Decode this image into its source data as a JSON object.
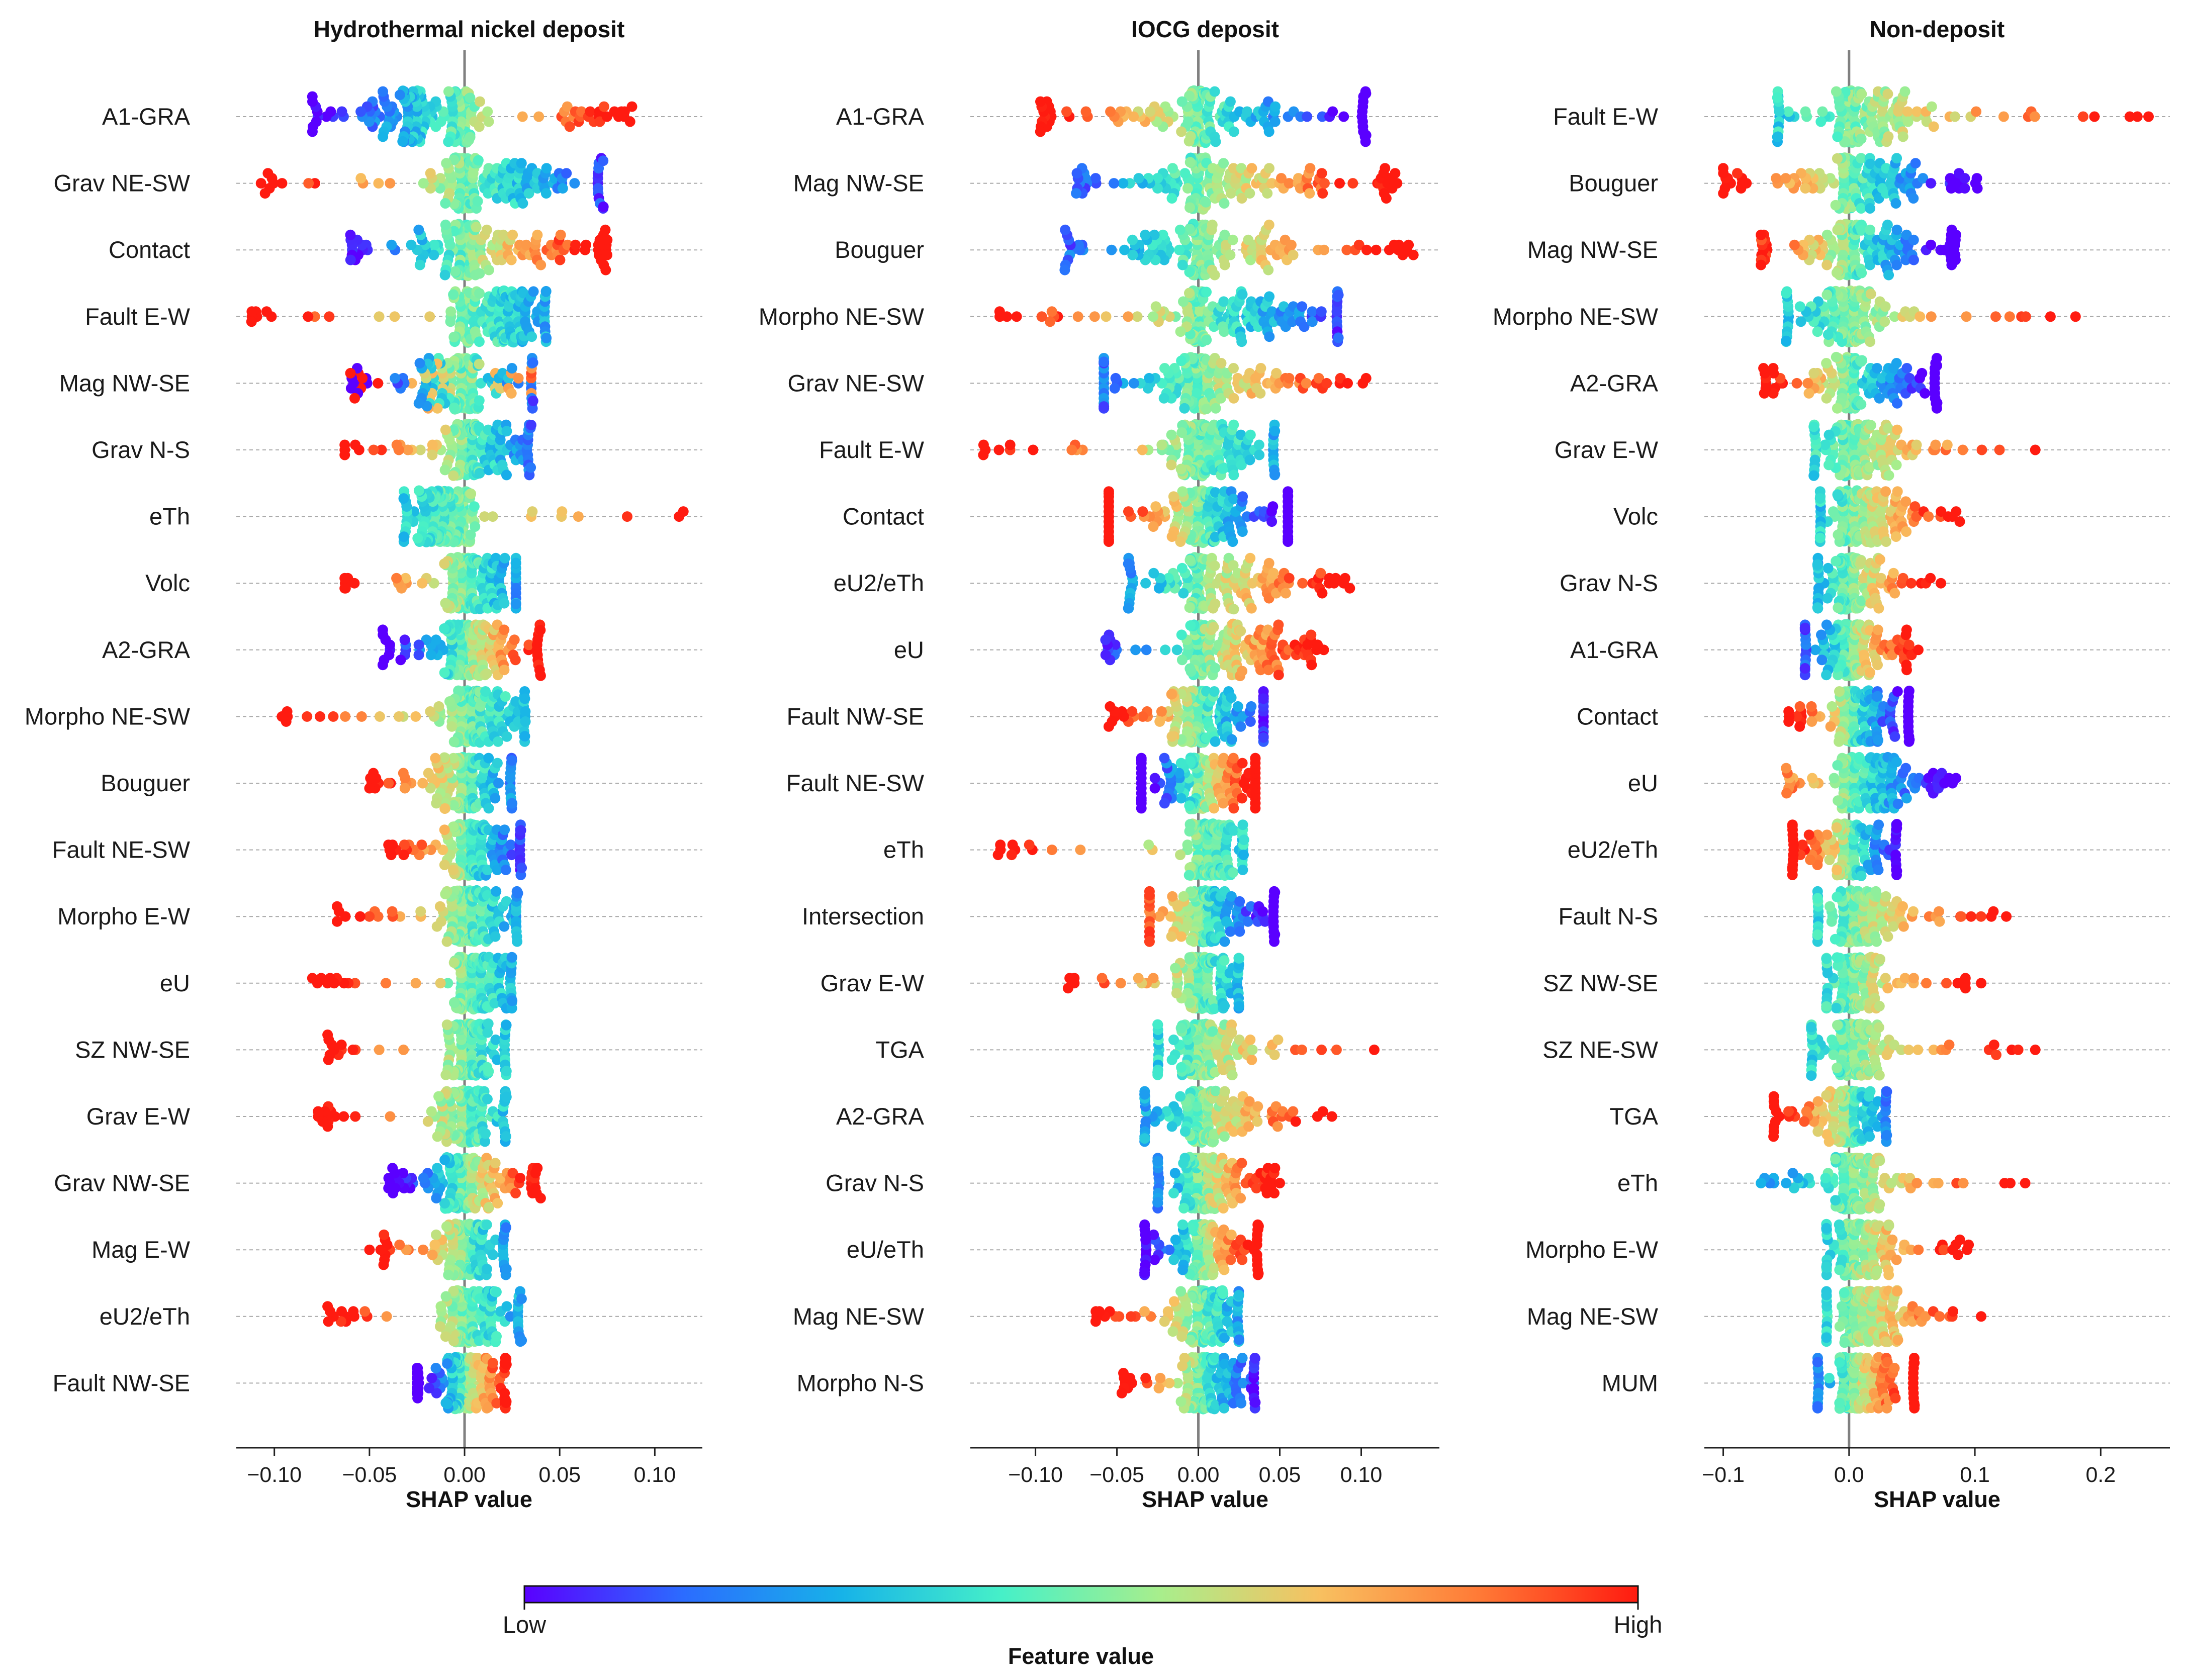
{
  "chart_data": [
    {
      "type": "scatter",
      "subtype": "shap-beeswarm",
      "title": "Hydrothermal nickel deposit",
      "xlabel": "SHAP value",
      "xlim": [
        -0.12,
        0.125
      ],
      "xticks": [
        -0.1,
        -0.05,
        0.0,
        0.05,
        0.1
      ],
      "xtick_labels": [
        "−0.10",
        "−0.05",
        "0.00",
        "0.05",
        "0.10"
      ],
      "features": [
        {
          "name": "A1-GRA",
          "min": -0.08,
          "max": 0.088,
          "low_side": "left",
          "core": [
            -0.06,
            0.0
          ],
          "extra": [
            0.05,
            0.088
          ]
        },
        {
          "name": "Grav NE-SW",
          "min": -0.107,
          "max": 0.073,
          "low_side": "right",
          "core": [
            -0.03,
            0.07
          ]
        },
        {
          "name": "Contact",
          "min": -0.06,
          "max": 0.075,
          "low_side": "left",
          "core": [
            -0.05,
            0.07
          ]
        },
        {
          "name": "Fault E-W",
          "min": -0.112,
          "max": 0.043,
          "low_side": "right",
          "core": [
            0.0,
            0.042
          ]
        },
        {
          "name": "Mag NW-SE",
          "min": -0.06,
          "max": 0.036,
          "low_side": "center",
          "core": [
            -0.05,
            0.035
          ]
        },
        {
          "name": "Grav N-S",
          "min": -0.063,
          "max": 0.035,
          "low_side": "right",
          "core": [
            -0.02,
            0.033
          ]
        },
        {
          "name": "eTh",
          "min": -0.032,
          "max": 0.115,
          "low_side": "left",
          "core": [
            -0.03,
            0.0
          ]
        },
        {
          "name": "Volc",
          "min": -0.063,
          "max": 0.027,
          "low_side": "right",
          "core": [
            -0.02,
            0.027
          ]
        },
        {
          "name": "A2-GRA",
          "min": -0.043,
          "max": 0.04,
          "low_side": "left",
          "core": [
            -0.03,
            0.038
          ]
        },
        {
          "name": "Morpho NE-SW",
          "min": -0.096,
          "max": 0.032,
          "low_side": "right",
          "core": [
            -0.02,
            0.031
          ]
        },
        {
          "name": "Bouguer",
          "min": -0.05,
          "max": 0.025,
          "low_side": "right",
          "core": [
            -0.03,
            0.024
          ]
        },
        {
          "name": "Fault NE-SW",
          "min": -0.04,
          "max": 0.03,
          "low_side": "right",
          "core": [
            -0.02,
            0.029
          ]
        },
        {
          "name": "Morpho E-W",
          "min": -0.067,
          "max": 0.028,
          "low_side": "right",
          "core": [
            -0.02,
            0.027
          ]
        },
        {
          "name": "eU",
          "min": -0.08,
          "max": 0.025,
          "low_side": "right",
          "core": [
            -0.01,
            0.024
          ]
        },
        {
          "name": "SZ NW-SE",
          "min": -0.072,
          "max": 0.022,
          "low_side": "right",
          "core": [
            -0.015,
            0.021
          ]
        },
        {
          "name": "Grav E-W",
          "min": -0.077,
          "max": 0.022,
          "low_side": "right",
          "core": [
            -0.02,
            0.02
          ]
        },
        {
          "name": "Grav NW-SE",
          "min": -0.04,
          "max": 0.04,
          "low_side": "left",
          "core": [
            -0.03,
            0.035
          ]
        },
        {
          "name": "Mag E-W",
          "min": -0.05,
          "max": 0.022,
          "low_side": "right",
          "core": [
            -0.02,
            0.02
          ]
        },
        {
          "name": "eU2/eTh",
          "min": -0.072,
          "max": 0.03,
          "low_side": "right",
          "core": [
            -0.02,
            0.028
          ]
        },
        {
          "name": "Fault NW-SE",
          "min": -0.025,
          "max": 0.022,
          "low_side": "left",
          "core": [
            -0.024,
            0.021
          ]
        }
      ]
    },
    {
      "type": "scatter",
      "subtype": "shap-beeswarm",
      "title": "IOCG deposit",
      "xlabel": "SHAP value",
      "xlim": [
        -0.14,
        0.148
      ],
      "xticks": [
        -0.1,
        -0.05,
        0.0,
        0.05,
        0.1
      ],
      "xtick_labels": [
        "−0.10",
        "−0.05",
        "0.00",
        "0.05",
        "0.10"
      ],
      "features": [
        {
          "name": "A1-GRA",
          "min": -0.097,
          "max": 0.103,
          "low_side": "right",
          "core": [
            -0.09,
            0.1
          ]
        },
        {
          "name": "Mag NW-SE",
          "min": -0.075,
          "max": 0.122,
          "low_side": "left",
          "core": [
            -0.06,
            0.11
          ]
        },
        {
          "name": "Bouguer",
          "min": -0.082,
          "max": 0.132,
          "low_side": "left",
          "core": [
            -0.07,
            0.09
          ]
        },
        {
          "name": "Morpho NE-SW",
          "min": -0.122,
          "max": 0.086,
          "low_side": "right",
          "core": [
            -0.04,
            0.085
          ]
        },
        {
          "name": "Grav NE-SW",
          "min": -0.058,
          "max": 0.103,
          "low_side": "left",
          "core": [
            -0.058,
            0.06
          ]
        },
        {
          "name": "Fault E-W",
          "min": -0.132,
          "max": 0.047,
          "low_side": "right",
          "core": [
            -0.03,
            0.046
          ]
        },
        {
          "name": "Contact",
          "min": -0.055,
          "max": 0.055,
          "low_side": "right",
          "core": [
            -0.055,
            0.055
          ]
        },
        {
          "name": "eU2/eTh",
          "min": -0.043,
          "max": 0.093,
          "low_side": "left",
          "core": [
            -0.04,
            0.07
          ]
        },
        {
          "name": "eU",
          "min": -0.057,
          "max": 0.077,
          "low_side": "left",
          "core": [
            -0.02,
            0.065
          ]
        },
        {
          "name": "Fault NW-SE",
          "min": -0.055,
          "max": 0.04,
          "low_side": "right",
          "core": [
            -0.03,
            0.04
          ]
        },
        {
          "name": "Fault NE-SW",
          "min": -0.035,
          "max": 0.035,
          "low_side": "left",
          "core": [
            -0.035,
            0.035
          ]
        },
        {
          "name": "eTh",
          "min": -0.123,
          "max": 0.028,
          "low_side": "right",
          "core": [
            -0.01,
            0.027
          ]
        },
        {
          "name": "Intersection",
          "min": -0.03,
          "max": 0.047,
          "low_side": "right",
          "core": [
            -0.03,
            0.046
          ]
        },
        {
          "name": "Grav E-W",
          "min": -0.08,
          "max": 0.025,
          "low_side": "right",
          "core": [
            -0.02,
            0.024
          ]
        },
        {
          "name": "TGA",
          "min": -0.025,
          "max": 0.108,
          "low_side": "left",
          "core": [
            -0.024,
            0.03
          ]
        },
        {
          "name": "A2-GRA",
          "min": -0.033,
          "max": 0.082,
          "low_side": "left",
          "core": [
            -0.032,
            0.045
          ]
        },
        {
          "name": "Grav N-S",
          "min": -0.025,
          "max": 0.05,
          "low_side": "left",
          "core": [
            -0.024,
            0.04
          ]
        },
        {
          "name": "eU/eTh",
          "min": -0.033,
          "max": 0.037,
          "low_side": "left",
          "core": [
            -0.032,
            0.036
          ]
        },
        {
          "name": "Mag NE-SW",
          "min": -0.063,
          "max": 0.025,
          "low_side": "right",
          "core": [
            -0.02,
            0.024
          ]
        },
        {
          "name": "Morpho N-S",
          "min": -0.047,
          "max": 0.035,
          "low_side": "right",
          "core": [
            -0.02,
            0.034
          ]
        }
      ]
    },
    {
      "type": "scatter",
      "subtype": "shap-beeswarm",
      "title": "Non-deposit",
      "xlabel": "SHAP value",
      "xlim": [
        -0.115,
        0.255
      ],
      "xticks": [
        -0.1,
        0.0,
        0.1,
        0.2
      ],
      "xtick_labels": [
        "−0.1",
        "0.0",
        "0.1",
        "0.2"
      ],
      "features": [
        {
          "name": "Fault E-W",
          "min": -0.057,
          "max": 0.238,
          "low_side": "left",
          "core": [
            -0.055,
            0.08
          ]
        },
        {
          "name": "Bouguer",
          "min": -0.1,
          "max": 0.102,
          "low_side": "right",
          "core": [
            -0.06,
            0.08
          ]
        },
        {
          "name": "Mag NW-SE",
          "min": -0.07,
          "max": 0.085,
          "low_side": "right",
          "core": [
            -0.065,
            0.08
          ]
        },
        {
          "name": "Morpho NE-SW",
          "min": -0.05,
          "max": 0.18,
          "low_side": "left",
          "core": [
            -0.048,
            0.04
          ]
        },
        {
          "name": "A2-GRA",
          "min": -0.068,
          "max": 0.07,
          "low_side": "right",
          "core": [
            -0.05,
            0.068
          ]
        },
        {
          "name": "Grav E-W",
          "min": -0.028,
          "max": 0.148,
          "low_side": "left",
          "core": [
            -0.026,
            0.05
          ]
        },
        {
          "name": "Volc",
          "min": -0.023,
          "max": 0.088,
          "low_side": "left",
          "core": [
            -0.022,
            0.05
          ]
        },
        {
          "name": "Grav N-S",
          "min": -0.025,
          "max": 0.073,
          "low_side": "left",
          "core": [
            -0.024,
            0.03
          ]
        },
        {
          "name": "A1-GRA",
          "min": -0.035,
          "max": 0.055,
          "low_side": "left",
          "core": [
            -0.034,
            0.04
          ]
        },
        {
          "name": "Contact",
          "min": -0.048,
          "max": 0.048,
          "low_side": "right",
          "core": [
            -0.025,
            0.047
          ]
        },
        {
          "name": "eU",
          "min": -0.05,
          "max": 0.085,
          "low_side": "right",
          "core": [
            -0.02,
            0.06
          ]
        },
        {
          "name": "eU2/eTh",
          "min": -0.045,
          "max": 0.038,
          "low_side": "right",
          "core": [
            -0.044,
            0.037
          ]
        },
        {
          "name": "Fault N-S",
          "min": -0.025,
          "max": 0.125,
          "low_side": "left",
          "core": [
            -0.024,
            0.05
          ]
        },
        {
          "name": "SZ NW-SE",
          "min": -0.018,
          "max": 0.105,
          "low_side": "left",
          "core": [
            -0.017,
            0.03
          ]
        },
        {
          "name": "SZ NE-SW",
          "min": -0.03,
          "max": 0.148,
          "low_side": "left",
          "core": [
            -0.029,
            0.04
          ]
        },
        {
          "name": "TGA",
          "min": -0.06,
          "max": 0.03,
          "low_side": "right",
          "core": [
            -0.04,
            0.029
          ]
        },
        {
          "name": "eTh",
          "min": -0.07,
          "max": 0.14,
          "low_side": "left",
          "core": [
            -0.03,
            0.04
          ]
        },
        {
          "name": "Morpho E-W",
          "min": -0.018,
          "max": 0.095,
          "low_side": "left",
          "core": [
            -0.017,
            0.04
          ]
        },
        {
          "name": "Mag NE-SW",
          "min": -0.018,
          "max": 0.105,
          "low_side": "left",
          "core": [
            -0.017,
            0.05
          ]
        },
        {
          "name": "MUM",
          "min": -0.025,
          "max": 0.052,
          "low_side": "left",
          "core": [
            -0.024,
            0.051
          ]
        }
      ]
    }
  ],
  "colorbar": {
    "label_low": "Low",
    "label_high": "High",
    "title": "Feature value",
    "colormap": [
      "#5a00ff",
      "#2b6cff",
      "#17b3e8",
      "#46f0c8",
      "#a8ee8c",
      "#f8c060",
      "#ff7a36",
      "#ff1b10"
    ]
  },
  "colors": {
    "grid": "#a8a8a8",
    "zero_line": "#808080",
    "axis": "#222222"
  }
}
